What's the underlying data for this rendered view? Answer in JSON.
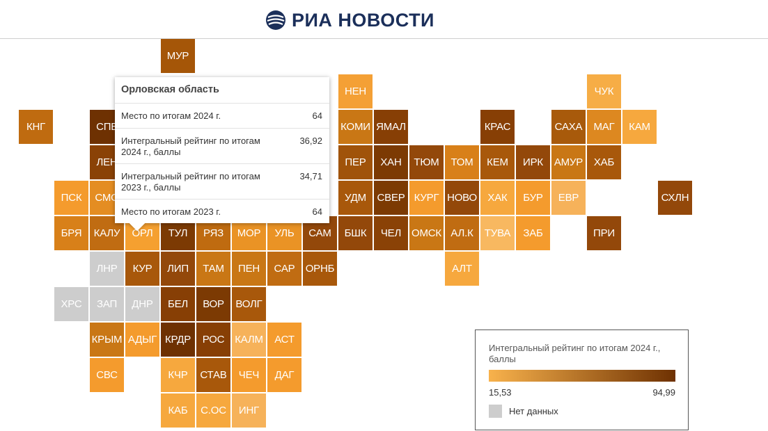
{
  "header": {
    "logo_text": "РИА НОВОСТИ"
  },
  "colors": {
    "scale_min": "#f8b24c",
    "scale_max": "#6e3102",
    "no_data": "#cdcdcd",
    "tooltip_highlight": "#f5a030"
  },
  "map": {
    "tiles": [
      {
        "label": "МУР",
        "col": 4,
        "row": 0,
        "color": "#a55608"
      },
      {
        "label": "НЕН",
        "col": 9,
        "row": 1,
        "color": "#f4a035"
      },
      {
        "label": "ЧУК",
        "col": 16,
        "row": 1,
        "color": "#f6ad46"
      },
      {
        "label": "КНГ",
        "col": 0,
        "row": 2,
        "color": "#bf6b10"
      },
      {
        "label": "СПБ",
        "col": 2,
        "row": 2,
        "color": "#6e3102"
      },
      {
        "label": "КОМИ",
        "col": 9,
        "row": 2,
        "color": "#c97715"
      },
      {
        "label": "ЯМАЛ",
        "col": 10,
        "row": 2,
        "color": "#873f05"
      },
      {
        "label": "КРАС",
        "col": 13,
        "row": 2,
        "color": "#873f05"
      },
      {
        "label": "САХА",
        "col": 15,
        "row": 2,
        "color": "#a85a0b"
      },
      {
        "label": "МАГ",
        "col": 16,
        "row": 2,
        "color": "#dd8820"
      },
      {
        "label": "КАМ",
        "col": 17,
        "row": 2,
        "color": "#f6a83e"
      },
      {
        "label": "ЛЕН",
        "col": 2,
        "row": 3,
        "color": "#8a4206"
      },
      {
        "label": "ПЕР",
        "col": 9,
        "row": 3,
        "color": "#a0530a"
      },
      {
        "label": "ХАН",
        "col": 10,
        "row": 3,
        "color": "#7c3a03"
      },
      {
        "label": "ТЮМ",
        "col": 11,
        "row": 3,
        "color": "#93480a"
      },
      {
        "label": "ТОМ",
        "col": 12,
        "row": 3,
        "color": "#d88019"
      },
      {
        "label": "КЕМ",
        "col": 13,
        "row": 3,
        "color": "#a8580b"
      },
      {
        "label": "ИРК",
        "col": 14,
        "row": 3,
        "color": "#93480a"
      },
      {
        "label": "АМУР",
        "col": 15,
        "row": 3,
        "color": "#c97715"
      },
      {
        "label": "ХАБ",
        "col": 16,
        "row": 3,
        "color": "#a8580b"
      },
      {
        "label": "ПСК",
        "col": 1,
        "row": 4,
        "color": "#f49b2d"
      },
      {
        "label": "СМО",
        "col": 2,
        "row": 4,
        "color": "#e48d22"
      },
      {
        "label": "УДМ",
        "col": 9,
        "row": 4,
        "color": "#a8580b"
      },
      {
        "label": "СВЕР",
        "col": 10,
        "row": 4,
        "color": "#7c3a03"
      },
      {
        "label": "КУРГ",
        "col": 11,
        "row": 4,
        "color": "#f49b2d"
      },
      {
        "label": "НОВО",
        "col": 12,
        "row": 4,
        "color": "#93480a"
      },
      {
        "label": "ХАК",
        "col": 13,
        "row": 4,
        "color": "#f6a83e"
      },
      {
        "label": "БУР",
        "col": 14,
        "row": 4,
        "color": "#f49b2d"
      },
      {
        "label": "ЕВР",
        "col": 15,
        "row": 4,
        "color": "#f6b25a"
      },
      {
        "label": "СХЛН",
        "col": 18,
        "row": 4,
        "color": "#93480a"
      },
      {
        "label": "БРЯ",
        "col": 1,
        "row": 5,
        "color": "#d88019"
      },
      {
        "label": "КАЛУ",
        "col": 2,
        "row": 5,
        "color": "#c06c12"
      },
      {
        "label": "ОРЛ",
        "col": 3,
        "row": 5,
        "color": "#f5a030"
      },
      {
        "label": "ТУЛ",
        "col": 4,
        "row": 5,
        "color": "#7c3a03"
      },
      {
        "label": "РЯЗ",
        "col": 5,
        "row": 5,
        "color": "#bf6b10"
      },
      {
        "label": "МОР",
        "col": 6,
        "row": 5,
        "color": "#ea9325"
      },
      {
        "label": "УЛЬ",
        "col": 7,
        "row": 5,
        "color": "#ea9325"
      },
      {
        "label": "САМ",
        "col": 8,
        "row": 5,
        "color": "#93480a"
      },
      {
        "label": "БШК",
        "col": 9,
        "row": 5,
        "color": "#93480a"
      },
      {
        "label": "ЧЕЛ",
        "col": 10,
        "row": 5,
        "color": "#8a4206"
      },
      {
        "label": "ОМСК",
        "col": 11,
        "row": 5,
        "color": "#c97715"
      },
      {
        "label": "АЛ.К",
        "col": 12,
        "row": 5,
        "color": "#c06c12"
      },
      {
        "label": "ТУВА",
        "col": 13,
        "row": 5,
        "color": "#f8b860"
      },
      {
        "label": "ЗАБ",
        "col": 14,
        "row": 5,
        "color": "#f49b2d"
      },
      {
        "label": "ПРИ",
        "col": 16,
        "row": 5,
        "color": "#93480a"
      },
      {
        "label": "ЛНР",
        "col": 2,
        "row": 6,
        "color": "#cdcdcd"
      },
      {
        "label": "КУР",
        "col": 3,
        "row": 6,
        "color": "#a8580b"
      },
      {
        "label": "ЛИП",
        "col": 4,
        "row": 6,
        "color": "#93480a"
      },
      {
        "label": "ТАМ",
        "col": 5,
        "row": 6,
        "color": "#c97715"
      },
      {
        "label": "ПЕН",
        "col": 6,
        "row": 6,
        "color": "#c97715"
      },
      {
        "label": "САР",
        "col": 7,
        "row": 6,
        "color": "#c06c12"
      },
      {
        "label": "ОРНБ",
        "col": 8,
        "row": 6,
        "color": "#a8580b"
      },
      {
        "label": "АЛТ",
        "col": 12,
        "row": 6,
        "color": "#f6a83e"
      },
      {
        "label": "ХРС",
        "col": 1,
        "row": 7,
        "color": "#cdcdcd"
      },
      {
        "label": "ЗАП",
        "col": 2,
        "row": 7,
        "color": "#cdcdcd"
      },
      {
        "label": "ДНР",
        "col": 3,
        "row": 7,
        "color": "#cdcdcd"
      },
      {
        "label": "БЕЛ",
        "col": 4,
        "row": 7,
        "color": "#873f05"
      },
      {
        "label": "ВОР",
        "col": 5,
        "row": 7,
        "color": "#7c3a03"
      },
      {
        "label": "ВОЛГ",
        "col": 6,
        "row": 7,
        "color": "#a8580b"
      },
      {
        "label": "КРЫМ",
        "col": 2,
        "row": 8,
        "color": "#c97715"
      },
      {
        "label": "АДЫГ",
        "col": 3,
        "row": 8,
        "color": "#f49b2d"
      },
      {
        "label": "КРДР",
        "col": 4,
        "row": 8,
        "color": "#6e3102"
      },
      {
        "label": "РОС",
        "col": 5,
        "row": 8,
        "color": "#873f05"
      },
      {
        "label": "КАЛМ",
        "col": 6,
        "row": 8,
        "color": "#f6b25a"
      },
      {
        "label": "АСТ",
        "col": 7,
        "row": 8,
        "color": "#f49b2d"
      },
      {
        "label": "СВС",
        "col": 2,
        "row": 9,
        "color": "#f49b2d"
      },
      {
        "label": "КЧР",
        "col": 4,
        "row": 9,
        "color": "#f6a83e"
      },
      {
        "label": "СТАВ",
        "col": 5,
        "row": 9,
        "color": "#a8580b"
      },
      {
        "label": "ЧЕЧ",
        "col": 6,
        "row": 9,
        "color": "#f49b2d"
      },
      {
        "label": "ДАГ",
        "col": 7,
        "row": 9,
        "color": "#f49b2d"
      },
      {
        "label": "КАБ",
        "col": 4,
        "row": 10,
        "color": "#f6a83e"
      },
      {
        "label": "С.ОС",
        "col": 5,
        "row": 10,
        "color": "#f6a83e"
      },
      {
        "label": "ИНГ",
        "col": 6,
        "row": 10,
        "color": "#f6b25a"
      }
    ]
  },
  "tooltip": {
    "title": "Орловская область",
    "rows": [
      {
        "label": "Место по итогам 2024 г.",
        "value": "64"
      },
      {
        "label": "Интегральный рейтинг по итогам 2024 г., баллы",
        "value": "36,92"
      },
      {
        "label": "Интегральный рейтинг по итогам 2023 г., баллы",
        "value": "34,71"
      },
      {
        "label": "Место по итогам 2023 г.",
        "value": "64"
      }
    ]
  },
  "legend": {
    "title": "Интегральный рейтинг по итогам 2024 г., баллы",
    "min_label": "15,53",
    "max_label": "94,99",
    "nodata_label": "Нет данных"
  }
}
